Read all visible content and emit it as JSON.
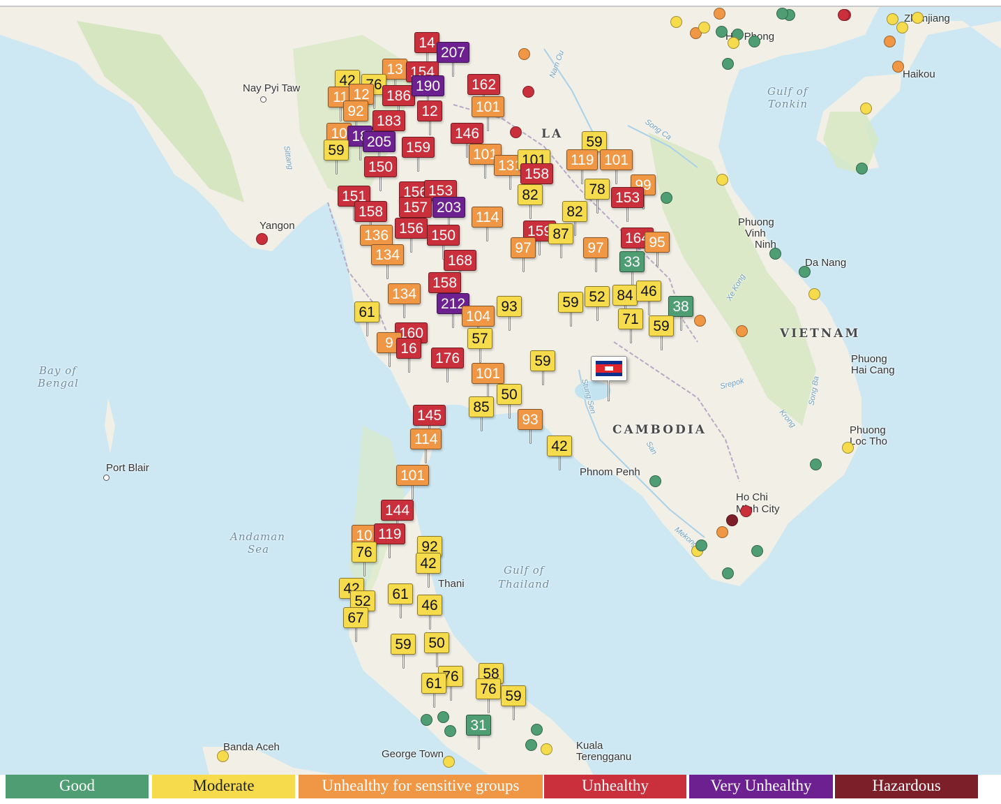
{
  "map": {
    "labels": {
      "nay_pyi_taw": "Nay Pyi Taw",
      "yangon": "Yangon",
      "bay_of_bengal_1": "Bay of",
      "bay_of_bengal_2": "Bengal",
      "port_blair": "Port Blair",
      "andaman_1": "Andaman",
      "andaman_2": "Sea",
      "banda_aceh": "Banda Aceh",
      "george_town": "George Town",
      "kuala_1": "Kuala",
      "kuala_2": "Terengganu",
      "gulf_thailand_1": "Gulf of",
      "gulf_thailand_2": "Thailand",
      "thani": "Thani",
      "cambodia": "CAMBODIA",
      "phnom_penh": "Phnom Penh",
      "ho_chi_1": "Ho Chi",
      "ho_chi_2": "Minh City",
      "vietnam": "VIETNAM",
      "phuong_vinh_1": "Phuong",
      "phuong_vinh_2": "Vinh",
      "phuong_vinh_3": "Ninh",
      "da_nang": "Da Nang",
      "phuong_hai_1": "Phuong",
      "phuong_hai_2": "Hai Cang",
      "phuong_loc_1": "Phuong",
      "phuong_loc_2": "Loc Tho",
      "gulf_tonkin_1": "Gulf of",
      "gulf_tonkin_2": "Tonkin",
      "haikou": "Haikou",
      "hai_phong": "Hai Phong",
      "zhanjiang": "Zhanjiang",
      "la": "LA",
      "nam_ou": "Nam Ou",
      "song_ca": "Song Ca",
      "sittang": "Sittang",
      "xe_kong": "Xe Kong",
      "srepok": "Srepok",
      "krong": "Krong",
      "song_ba": "Song Ba",
      "mekong": "Mekong",
      "sang": "San",
      "stung_sen": "Stung Sen"
    },
    "flag_icon": "cambodia-flag-icon",
    "markers": [
      {
        "v": "14",
        "c": "unhealthy"
      },
      {
        "v": "207",
        "c": "very"
      },
      {
        "v": "13",
        "c": "usg"
      },
      {
        "v": "154",
        "c": "unhealthy"
      },
      {
        "v": "42",
        "c": "moderate"
      },
      {
        "v": "76",
        "c": "moderate"
      },
      {
        "v": "162",
        "c": "unhealthy"
      },
      {
        "v": "11",
        "c": "usg"
      },
      {
        "v": "12",
        "c": "usg"
      },
      {
        "v": "186",
        "c": "unhealthy"
      },
      {
        "v": "190",
        "c": "very"
      },
      {
        "v": "101",
        "c": "usg"
      },
      {
        "v": "92",
        "c": "usg"
      },
      {
        "v": "12",
        "c": "unhealthy"
      },
      {
        "v": "183",
        "c": "unhealthy"
      },
      {
        "v": "146",
        "c": "unhealthy"
      },
      {
        "v": "10",
        "c": "usg"
      },
      {
        "v": "18",
        "c": "very"
      },
      {
        "v": "205",
        "c": "very"
      },
      {
        "v": "159",
        "c": "unhealthy"
      },
      {
        "v": "59",
        "c": "moderate"
      },
      {
        "v": "150",
        "c": "unhealthy"
      },
      {
        "v": "101",
        "c": "usg"
      },
      {
        "v": "131",
        "c": "usg"
      },
      {
        "v": "101",
        "c": "moderate"
      },
      {
        "v": "158",
        "c": "unhealthy"
      },
      {
        "v": "59",
        "c": "moderate"
      },
      {
        "v": "119",
        "c": "usg"
      },
      {
        "v": "101",
        "c": "usg"
      },
      {
        "v": "151",
        "c": "unhealthy"
      },
      {
        "v": "156",
        "c": "unhealthy"
      },
      {
        "v": "153",
        "c": "unhealthy"
      },
      {
        "v": "82",
        "c": "moderate"
      },
      {
        "v": "78",
        "c": "moderate"
      },
      {
        "v": "99",
        "c": "usg"
      },
      {
        "v": "153",
        "c": "unhealthy"
      },
      {
        "v": "158",
        "c": "unhealthy"
      },
      {
        "v": "157",
        "c": "unhealthy"
      },
      {
        "v": "203",
        "c": "very"
      },
      {
        "v": "114",
        "c": "usg"
      },
      {
        "v": "82",
        "c": "moderate"
      },
      {
        "v": "136",
        "c": "usg"
      },
      {
        "v": "156",
        "c": "unhealthy"
      },
      {
        "v": "150",
        "c": "unhealthy"
      },
      {
        "v": "159",
        "c": "unhealthy"
      },
      {
        "v": "87",
        "c": "moderate"
      },
      {
        "v": "164",
        "c": "unhealthy"
      },
      {
        "v": "95",
        "c": "usg"
      },
      {
        "v": "134",
        "c": "usg"
      },
      {
        "v": "168",
        "c": "unhealthy"
      },
      {
        "v": "97",
        "c": "usg"
      },
      {
        "v": "97",
        "c": "usg"
      },
      {
        "v": "33",
        "c": "good"
      },
      {
        "v": "158",
        "c": "unhealthy"
      },
      {
        "v": "134",
        "c": "usg"
      },
      {
        "v": "212",
        "c": "very"
      },
      {
        "v": "93",
        "c": "moderate"
      },
      {
        "v": "59",
        "c": "moderate"
      },
      {
        "v": "52",
        "c": "moderate"
      },
      {
        "v": "84",
        "c": "moderate"
      },
      {
        "v": "46",
        "c": "moderate"
      },
      {
        "v": "38",
        "c": "good"
      },
      {
        "v": "61",
        "c": "moderate"
      },
      {
        "v": "104",
        "c": "usg"
      },
      {
        "v": "160",
        "c": "unhealthy"
      },
      {
        "v": "71",
        "c": "moderate"
      },
      {
        "v": "59",
        "c": "moderate"
      },
      {
        "v": "57",
        "c": "moderate"
      },
      {
        "v": "9",
        "c": "usg"
      },
      {
        "v": "16",
        "c": "unhealthy"
      },
      {
        "v": "176",
        "c": "unhealthy"
      },
      {
        "v": "59",
        "c": "moderate"
      },
      {
        "v": "101",
        "c": "usg"
      },
      {
        "v": "50",
        "c": "moderate"
      },
      {
        "v": "85",
        "c": "moderate"
      },
      {
        "v": "145",
        "c": "unhealthy"
      },
      {
        "v": "93",
        "c": "usg"
      },
      {
        "v": "114",
        "c": "usg"
      },
      {
        "v": "42",
        "c": "moderate"
      },
      {
        "v": "101",
        "c": "usg"
      },
      {
        "v": "144",
        "c": "unhealthy"
      },
      {
        "v": "10",
        "c": "usg"
      },
      {
        "v": "119",
        "c": "unhealthy"
      },
      {
        "v": "92",
        "c": "moderate"
      },
      {
        "v": "76",
        "c": "moderate"
      },
      {
        "v": "42",
        "c": "moderate"
      },
      {
        "v": "42",
        "c": "moderate"
      },
      {
        "v": "61",
        "c": "moderate"
      },
      {
        "v": "52",
        "c": "moderate"
      },
      {
        "v": "46",
        "c": "moderate"
      },
      {
        "v": "67",
        "c": "moderate"
      },
      {
        "v": "59",
        "c": "moderate"
      },
      {
        "v": "50",
        "c": "moderate"
      },
      {
        "v": "76",
        "c": "moderate"
      },
      {
        "v": "58",
        "c": "moderate"
      },
      {
        "v": "61",
        "c": "moderate"
      },
      {
        "v": "76",
        "c": "moderate"
      },
      {
        "v": "59",
        "c": "moderate"
      },
      {
        "v": "31",
        "c": "good"
      }
    ],
    "dots": [
      {
        "c": "usg"
      },
      {
        "c": "unhealthy"
      },
      {
        "c": "usg"
      },
      {
        "c": "unhealthy"
      },
      {
        "c": "unhealthy"
      },
      {
        "c": "good"
      },
      {
        "c": "moderate"
      },
      {
        "c": "usg"
      },
      {
        "c": "moderate"
      },
      {
        "c": "good"
      },
      {
        "c": "good"
      },
      {
        "c": "moderate"
      },
      {
        "c": "good"
      },
      {
        "c": "unhealthy"
      },
      {
        "c": "moderate"
      },
      {
        "c": "moderate"
      },
      {
        "c": "moderate"
      },
      {
        "c": "usg"
      },
      {
        "c": "usg"
      },
      {
        "c": "moderate"
      },
      {
        "c": "good"
      },
      {
        "c": "moderate"
      },
      {
        "c": "good"
      },
      {
        "c": "good"
      },
      {
        "c": "moderate"
      },
      {
        "c": "usg"
      },
      {
        "c": "usg"
      },
      {
        "c": "good"
      },
      {
        "c": "good"
      },
      {
        "c": "good"
      },
      {
        "c": "unhealthy"
      },
      {
        "c": "hazardous"
      },
      {
        "c": "usg"
      },
      {
        "c": "moderate"
      },
      {
        "c": "good"
      },
      {
        "c": "good"
      },
      {
        "c": "good"
      },
      {
        "c": "good"
      },
      {
        "c": "moderate"
      },
      {
        "c": "good"
      },
      {
        "c": "good"
      },
      {
        "c": "good"
      },
      {
        "c": "good"
      },
      {
        "c": "good"
      },
      {
        "c": "good"
      },
      {
        "c": "moderate"
      },
      {
        "c": "moderate"
      },
      {
        "c": "moderate"
      }
    ]
  },
  "colors": {
    "good": "#4f9e73",
    "moderate": "#f6db4c",
    "usg": "#f09745",
    "unhealthy": "#c9303c",
    "very": "#6d2190",
    "hazardous": "#7d1f28",
    "map_bg": "#cde8f3",
    "land": "#f1efe6",
    "forest": "#cfe3b8"
  },
  "legend": {
    "good": "Good",
    "moderate": "Moderate",
    "usg": "Unhealthy for sensitive groups",
    "unhealthy": "Unhealthy",
    "very": "Very Unhealthy",
    "hazardous": "Hazardous"
  }
}
